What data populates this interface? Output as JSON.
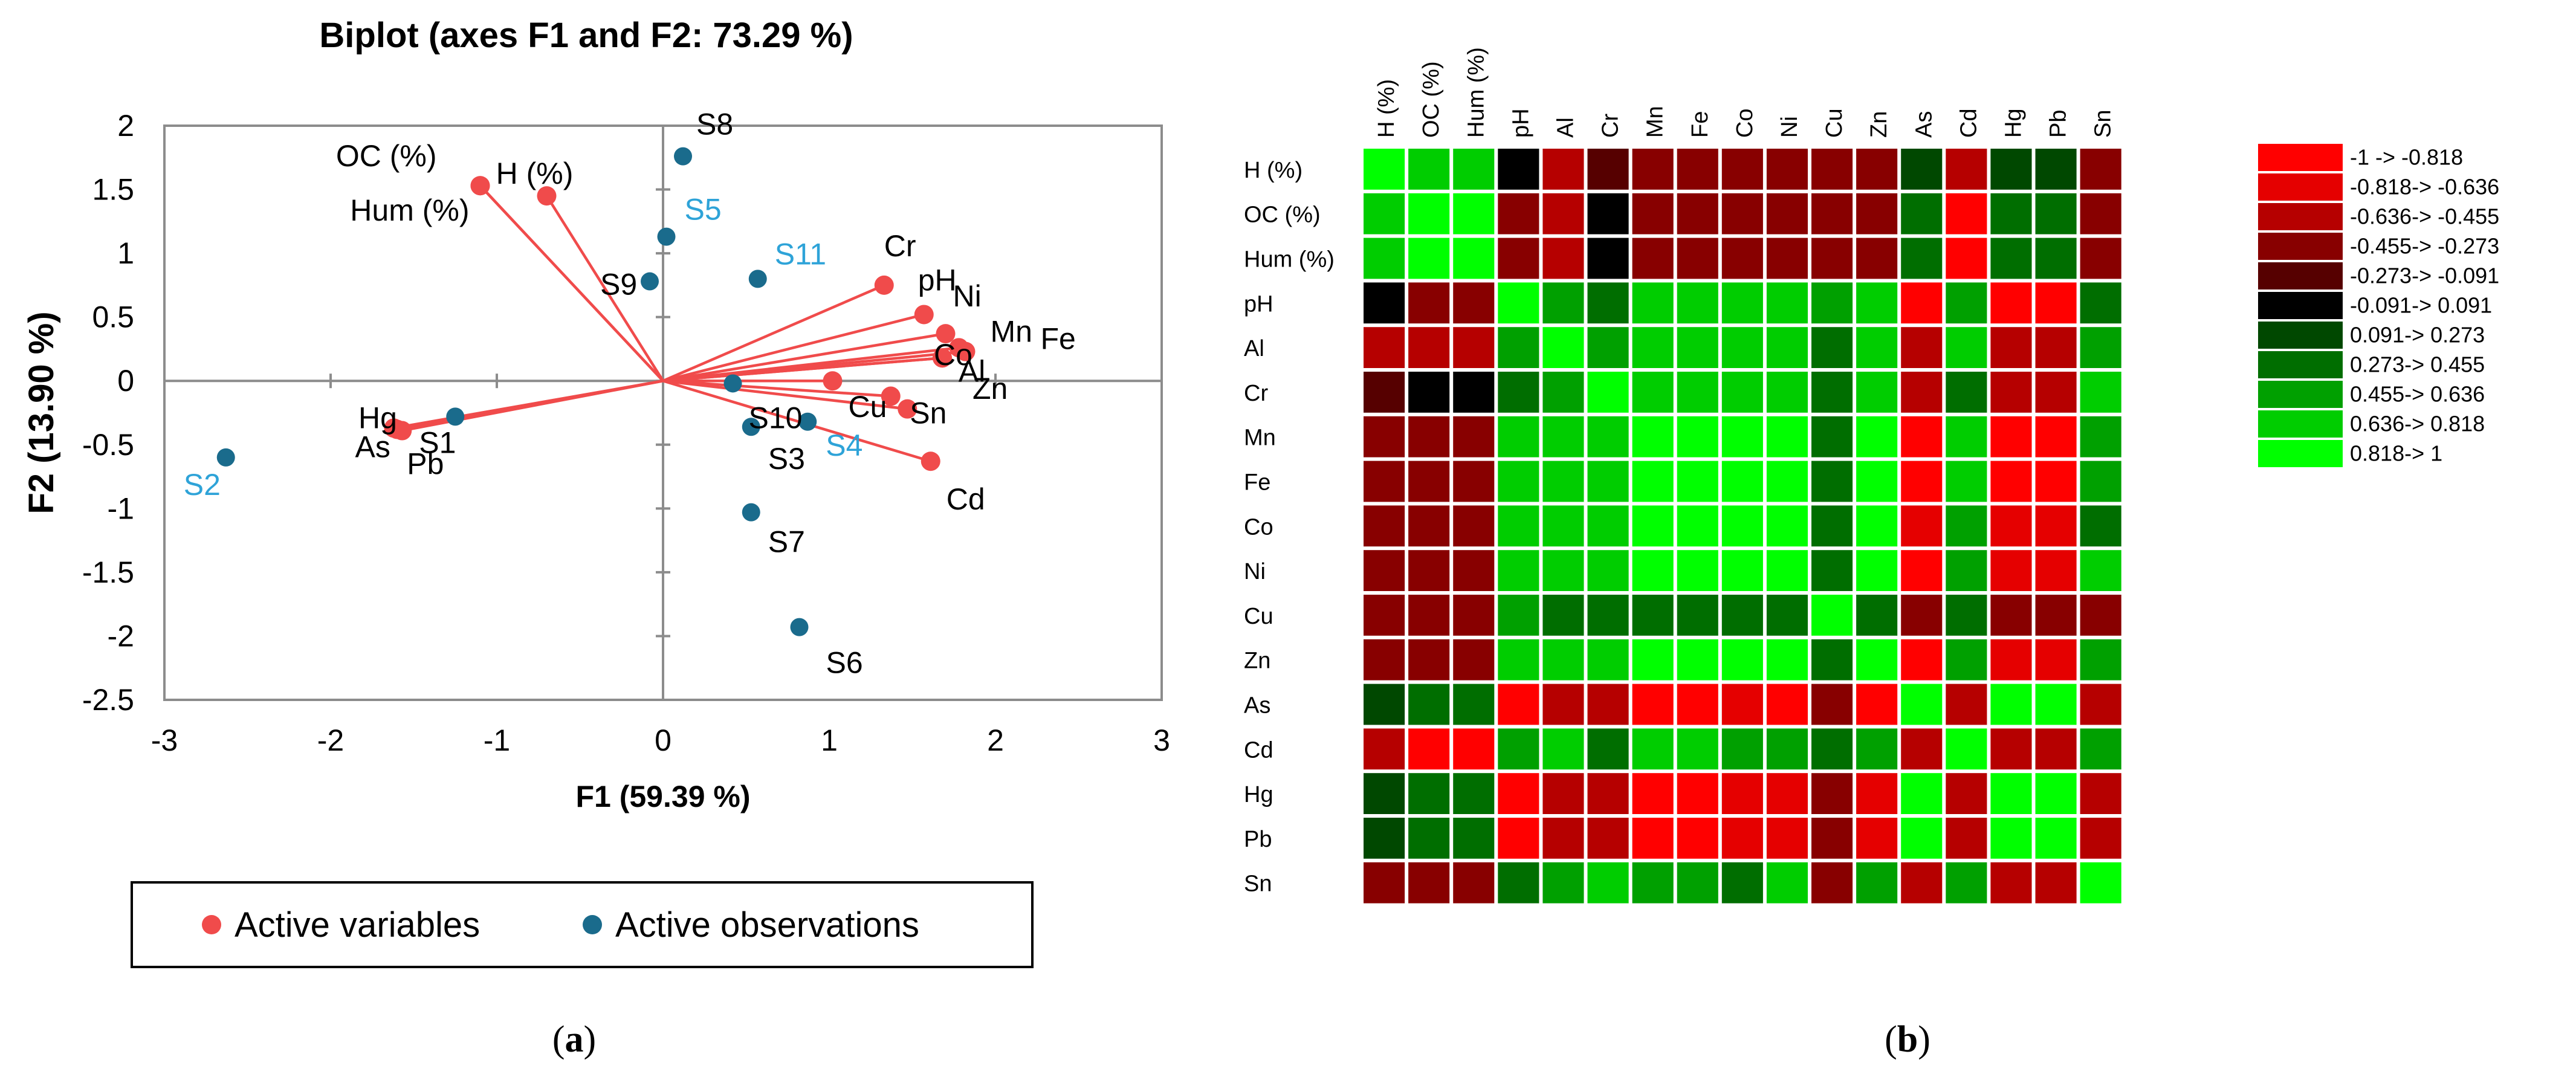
{
  "figure": {
    "panel_a_label_parts": [
      "(",
      "a",
      ")"
    ],
    "panel_b_label_parts": [
      "(",
      "b",
      ")"
    ]
  },
  "chart_data": [
    {
      "type": "scatter",
      "subtype": "biplot",
      "title": "Biplot (axes F1 and F2: 73.29 %)",
      "xlabel": "F1 (59.39 %)",
      "ylabel": "F2 (13.90 %)",
      "xlim": [
        -3,
        3
      ],
      "ylim": [
        -2.5,
        2
      ],
      "xticks": [
        -3,
        -2,
        -1,
        0,
        1,
        2,
        3
      ],
      "yticks": [
        -2.5,
        -2,
        -1.5,
        -1,
        -0.5,
        0,
        0.5,
        1,
        1.5,
        2
      ],
      "ytick_labels": [
        "-2.5",
        "-2",
        "-1.5",
        "-1",
        "-0.5",
        "0",
        "0.5",
        "1",
        "1.5",
        "2"
      ],
      "grid": false,
      "legend": {
        "placement": "bottom",
        "entries": [
          "Active variables",
          "Active observations"
        ],
        "colors": [
          "#f04b4b",
          "#1a6b8c"
        ]
      },
      "colors": {
        "variables": "#f04b4b",
        "observations": "#1a6b8c",
        "highlight_label": "#2ea3d8"
      },
      "variables": [
        {
          "name": "OC (%)",
          "x": -1.1,
          "y": 1.53
        },
        {
          "name": "H (%)",
          "x": -0.7,
          "y": 1.45
        },
        {
          "name": "Hum (%)",
          "x": -1.1,
          "y": 1.53
        },
        {
          "name": "Cr",
          "x": 1.33,
          "y": 0.75
        },
        {
          "name": "pH",
          "x": 1.57,
          "y": 0.52
        },
        {
          "name": "Ni",
          "x": 1.7,
          "y": 0.37
        },
        {
          "name": "Co",
          "x": 1.68,
          "y": 0.18
        },
        {
          "name": "Mn",
          "x": 1.78,
          "y": 0.26
        },
        {
          "name": "Fe",
          "x": 1.82,
          "y": 0.23
        },
        {
          "name": "Zn",
          "x": 1.68,
          "y": 0.18
        },
        {
          "name": "Cu",
          "x": 1.02,
          "y": 0.0
        },
        {
          "name": "Sn",
          "x": 1.47,
          "y": -0.22
        },
        {
          "name": "Al",
          "x": 1.37,
          "y": -0.12
        },
        {
          "name": "Cd",
          "x": 1.61,
          "y": -0.63
        },
        {
          "name": "Hg",
          "x": -1.6,
          "y": -0.38
        },
        {
          "name": "As",
          "x": -1.62,
          "y": -0.37
        },
        {
          "name": "Pb",
          "x": -1.57,
          "y": -0.39
        }
      ],
      "observations": [
        {
          "name": "S1",
          "x": -1.25,
          "y": -0.28
        },
        {
          "name": "S2",
          "x": -2.63,
          "y": -0.6
        },
        {
          "name": "S3",
          "x": 0.53,
          "y": -0.36
        },
        {
          "name": "S4",
          "x": 0.87,
          "y": -0.32
        },
        {
          "name": "S5",
          "x": 0.02,
          "y": 1.13
        },
        {
          "name": "S6",
          "x": 0.82,
          "y": -1.93
        },
        {
          "name": "S7",
          "x": 0.53,
          "y": -1.03
        },
        {
          "name": "S8",
          "x": 0.12,
          "y": 1.76
        },
        {
          "name": "S9",
          "x": -0.08,
          "y": 0.78
        },
        {
          "name": "S10",
          "x": 0.42,
          "y": -0.02
        },
        {
          "name": "S11",
          "x": 0.57,
          "y": 0.8
        }
      ],
      "highlighted_observations": [
        "S2",
        "S4",
        "S5",
        "S11"
      ]
    },
    {
      "type": "heatmap",
      "title": "",
      "row_labels": [
        "H (%)",
        "OC (%)",
        "Hum (%)",
        "pH",
        "Al",
        "Cr",
        "Mn",
        "Fe",
        "Co",
        "Ni",
        "Cu",
        "Zn",
        "As",
        "Cd",
        "Hg",
        "Pb",
        "Sn"
      ],
      "col_labels": [
        "H (%)",
        "OC (%)",
        "Hum (%)",
        "pH",
        "Al",
        "Cr",
        "Mn",
        "Fe",
        "Co",
        "Ni",
        "Cu",
        "Zn",
        "As",
        "Cd",
        "Hg",
        "Pb",
        "Sn"
      ],
      "values": [
        [
          1,
          0.75,
          0.75,
          0,
          -0.55,
          -0.2,
          -0.3,
          -0.35,
          -0.3,
          -0.3,
          -0.3,
          -0.3,
          0.2,
          -0.55,
          0.2,
          0.2,
          -0.4
        ],
        [
          0.75,
          1,
          0.9,
          -0.4,
          -0.6,
          0,
          -0.3,
          -0.35,
          -0.3,
          -0.3,
          -0.3,
          -0.3,
          0.35,
          -0.82,
          0.3,
          0.3,
          -0.4
        ],
        [
          0.75,
          0.9,
          1,
          -0.45,
          -0.6,
          0,
          -0.3,
          -0.35,
          -0.3,
          -0.3,
          -0.3,
          -0.3,
          0.35,
          -0.82,
          0.3,
          0.3,
          -0.4
        ],
        [
          0,
          -0.4,
          -0.45,
          1,
          0.5,
          0.35,
          0.75,
          0.75,
          0.7,
          0.7,
          0.55,
          0.75,
          -0.9,
          0.55,
          -0.9,
          -0.9,
          0.4
        ],
        [
          -0.55,
          -0.6,
          -0.6,
          0.5,
          1,
          0.55,
          0.7,
          0.7,
          0.65,
          0.7,
          0.45,
          0.7,
          -0.6,
          0.65,
          -0.55,
          -0.6,
          0.6
        ],
        [
          -0.2,
          0,
          0,
          0.35,
          0.55,
          1,
          0.7,
          0.7,
          0.65,
          0.65,
          0.3,
          0.65,
          -0.55,
          0.4,
          -0.5,
          -0.55,
          0.7
        ],
        [
          -0.3,
          -0.3,
          -0.3,
          0.75,
          0.7,
          0.7,
          1,
          0.95,
          0.9,
          0.9,
          0.35,
          0.9,
          -0.9,
          0.65,
          -0.85,
          -0.85,
          0.6
        ],
        [
          -0.35,
          -0.35,
          -0.35,
          0.75,
          0.7,
          0.7,
          0.95,
          1,
          0.9,
          0.9,
          0.4,
          0.9,
          -0.9,
          0.65,
          -0.85,
          -0.85,
          0.6
        ],
        [
          -0.3,
          -0.3,
          -0.3,
          0.7,
          0.65,
          0.65,
          0.9,
          0.9,
          1,
          0.85,
          0.45,
          0.85,
          -0.8,
          0.6,
          -0.75,
          -0.8,
          0.4
        ],
        [
          -0.3,
          -0.3,
          -0.3,
          0.7,
          0.7,
          0.65,
          0.9,
          0.9,
          0.85,
          1,
          0.4,
          0.85,
          -0.85,
          0.6,
          -0.8,
          -0.8,
          0.65
        ],
        [
          -0.3,
          -0.3,
          -0.3,
          0.55,
          0.45,
          0.3,
          0.35,
          0.4,
          0.45,
          0.4,
          1,
          0.4,
          -0.45,
          0.45,
          -0.45,
          -0.45,
          -0.35
        ],
        [
          -0.3,
          -0.3,
          -0.3,
          0.75,
          0.7,
          0.65,
          0.9,
          0.9,
          0.85,
          0.85,
          0.4,
          1,
          -0.85,
          0.6,
          -0.8,
          -0.8,
          0.6
        ],
        [
          0.2,
          0.35,
          0.35,
          -0.9,
          -0.6,
          -0.55,
          -0.9,
          -0.9,
          -0.8,
          -0.85,
          -0.45,
          -0.85,
          1,
          -0.6,
          0.95,
          0.95,
          -0.55
        ],
        [
          -0.55,
          -0.82,
          -0.82,
          0.55,
          0.65,
          0.4,
          0.65,
          0.65,
          0.6,
          0.6,
          0.45,
          0.6,
          -0.6,
          1,
          -0.6,
          -0.6,
          0.6
        ],
        [
          0.2,
          0.3,
          0.3,
          -0.9,
          -0.55,
          -0.5,
          -0.85,
          -0.85,
          -0.75,
          -0.8,
          -0.45,
          -0.8,
          0.95,
          -0.6,
          1,
          0.95,
          -0.5
        ],
        [
          0.2,
          0.3,
          0.3,
          -0.9,
          -0.6,
          -0.55,
          -0.85,
          -0.85,
          -0.8,
          -0.8,
          -0.45,
          -0.8,
          0.95,
          -0.6,
          0.95,
          1,
          -0.5
        ],
        [
          -0.4,
          -0.4,
          -0.4,
          0.4,
          0.6,
          0.7,
          0.6,
          0.6,
          0.4,
          0.65,
          -0.35,
          0.6,
          -0.55,
          0.6,
          -0.5,
          -0.5,
          1
        ]
      ],
      "color_scale": [
        {
          "label": "-1 -> -0.818",
          "color": "#ff0000"
        },
        {
          "label": "-0.818 -> -0.636",
          "color": "#e50000"
        },
        {
          "label": "-0.636 -> -0.455",
          "color": "#b60000"
        },
        {
          "label": "-0.455 -> -0.273",
          "color": "#880000"
        },
        {
          "label": "-0.273 -> -0.091",
          "color": "#560000"
        },
        {
          "label": "-0.091 -> 0.091",
          "color": "#000000"
        },
        {
          "label": "0.091 -> 0.273",
          "color": "#004800"
        },
        {
          "label": "0.273 -> 0.455",
          "color": "#006e00"
        },
        {
          "label": "0.455 -> 0.636",
          "color": "#00a000"
        },
        {
          "label": "0.636 -> 0.818",
          "color": "#00cd00"
        },
        {
          "label": "0.818 -> 1",
          "color": "#00ff00"
        }
      ],
      "color_scale_display": [
        "-1 -> -0.818",
        "-0.818-> -0.636",
        "-0.636-> -0.455",
        "-0.455-> -0.273",
        "-0.273-> -0.091",
        "-0.091-> 0.091",
        "0.091-> 0.273",
        "0.273-> 0.455",
        "0.455-> 0.636",
        "0.636-> 0.818",
        "0.818-> 1"
      ],
      "legend": {
        "placement": "right"
      }
    }
  ]
}
